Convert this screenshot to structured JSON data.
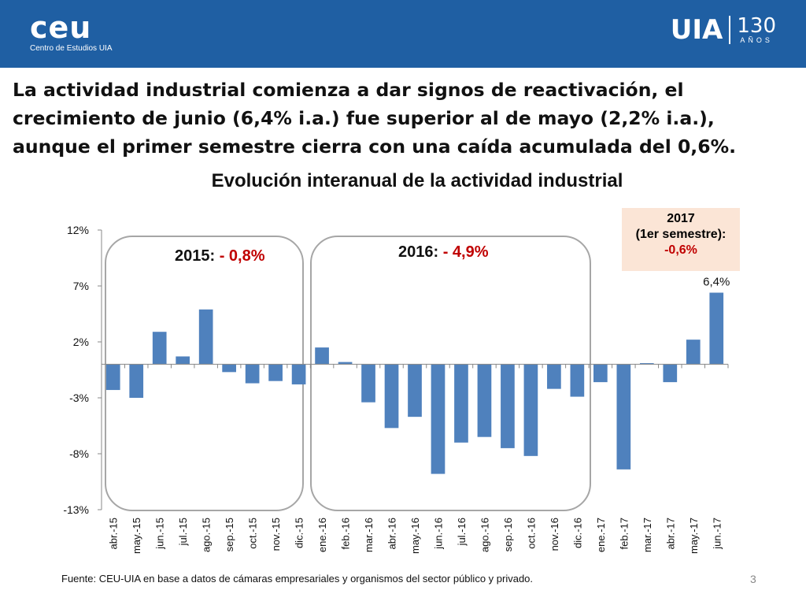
{
  "header": {
    "ceu_logo": "ceu",
    "ceu_subtitle": "Centro de Estudios UIA",
    "uia_logo": "UIA",
    "uia_years": "130",
    "uia_years_label": "AÑOS"
  },
  "headline": "La actividad industrial comienza a dar signos de reactivación, el crecimiento de junio (6,4% i.a.) fue superior al de mayo (2,2% i.a.), aunque el primer semestre cierra con una caída acumulada del 0,6%.",
  "annotations": {
    "y2015_label": "2015: ",
    "y2015_value": "- 0,8%",
    "y2016_label": "2016: ",
    "y2016_value": "- 4,9%",
    "y2017_year": "2017",
    "y2017_period": "(1er semestre):",
    "y2017_value": "-0,6%"
  },
  "footer": {
    "source": "Fuente: CEU-UIA en base a datos de cámaras empresariales y organismos del sector público y privado.",
    "page": "3"
  },
  "colors": {
    "header": "#1f5fa3",
    "bar": "#4f81bd",
    "negative_text": "#c00000",
    "box_bg": "#fbe5d6"
  },
  "chart_data": {
    "type": "bar",
    "title": "Evolución interanual de la actividad industrial",
    "categories": [
      "abr.-15",
      "may.-15",
      "jun.-15",
      "jul.-15",
      "ago.-15",
      "sep.-15",
      "oct.-15",
      "nov.-15",
      "dic.-15",
      "ene.-16",
      "feb.-16",
      "mar.-16",
      "abr.-16",
      "may.-16",
      "jun.-16",
      "jul.-16",
      "ago.-16",
      "sep.-16",
      "oct.-16",
      "nov.-16",
      "dic.-16",
      "ene.-17",
      "feb.-17",
      "mar.-17",
      "abr.-17",
      "may.-17",
      "jun.-17"
    ],
    "values": [
      -2.3,
      -3.0,
      2.9,
      0.7,
      4.9,
      -0.7,
      -1.7,
      -1.5,
      -1.8,
      1.5,
      0.2,
      -3.4,
      -5.7,
      -4.7,
      -9.8,
      -7.0,
      -6.5,
      -7.5,
      -8.2,
      -2.2,
      -2.9,
      -1.6,
      -9.4,
      0.1,
      -1.6,
      2.2,
      6.4
    ],
    "yticks": [
      "12%",
      "7%",
      "2%",
      "-3%",
      "-8%",
      "-13%"
    ],
    "ytick_values": [
      12,
      7,
      2,
      -3,
      -8,
      -13
    ],
    "ylim": [
      -13,
      12
    ],
    "data_labels": [
      {
        "index": 26,
        "text": "6,4%"
      }
    ],
    "xlabel": "",
    "ylabel": ""
  }
}
